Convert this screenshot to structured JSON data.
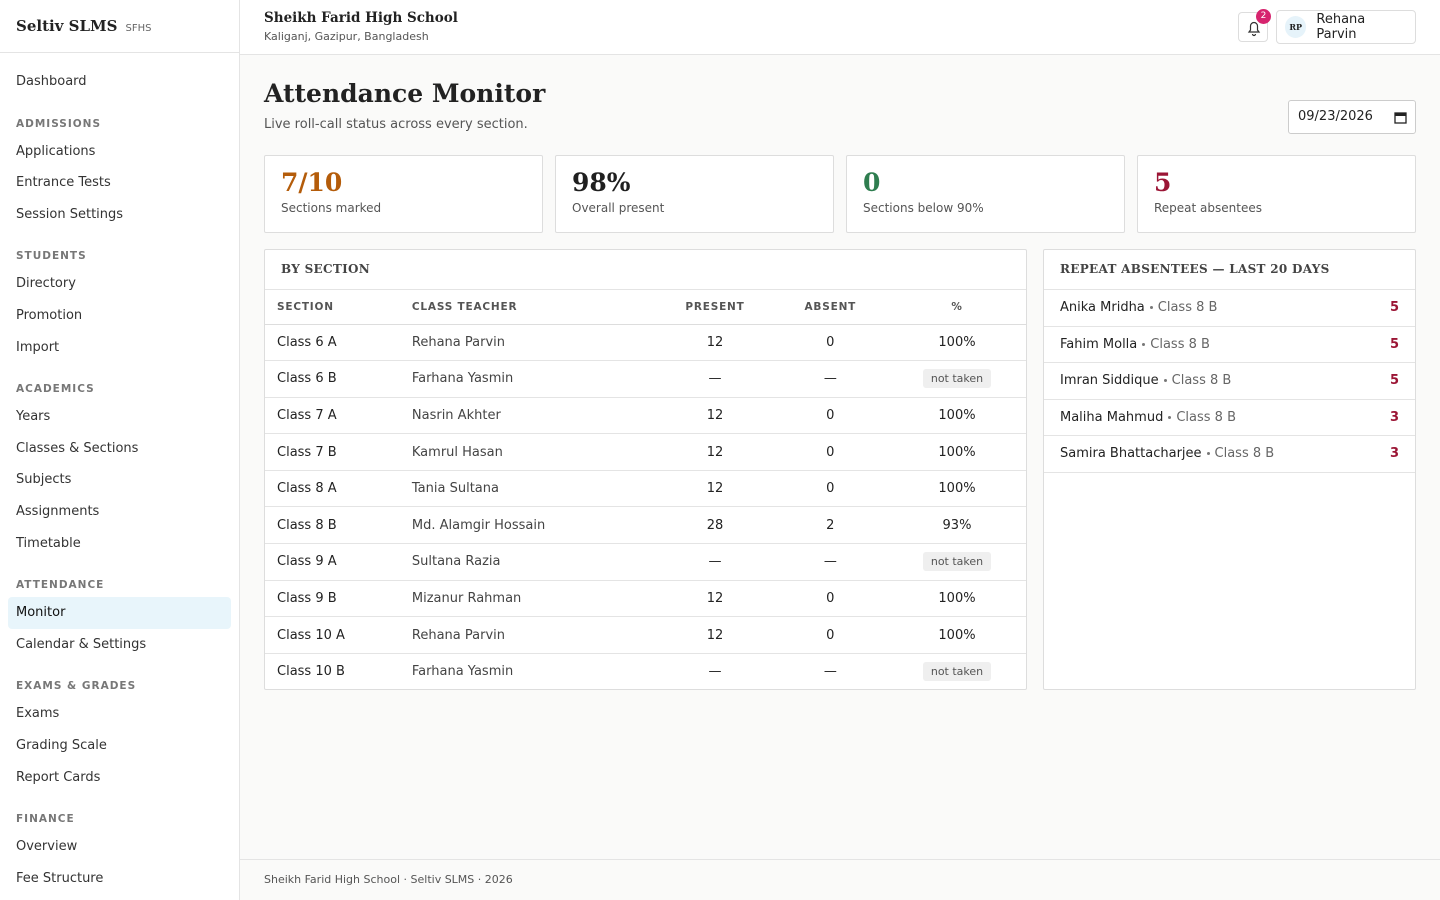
{
  "sidebar": {
    "brand": "Seltiv SLMS",
    "code": "SFHS",
    "nav": [
      {
        "items": [
          {
            "label": "Dashboard"
          }
        ]
      },
      {
        "label": "ADMISSIONS",
        "items": [
          {
            "label": "Applications"
          },
          {
            "label": "Entrance Tests"
          },
          {
            "label": "Session Settings"
          }
        ]
      },
      {
        "label": "STUDENTS",
        "items": [
          {
            "label": "Directory"
          },
          {
            "label": "Promotion"
          },
          {
            "label": "Import"
          }
        ]
      },
      {
        "label": "ACADEMICS",
        "items": [
          {
            "label": "Years"
          },
          {
            "label": "Classes & Sections"
          },
          {
            "label": "Subjects"
          },
          {
            "label": "Assignments"
          },
          {
            "label": "Timetable"
          }
        ]
      },
      {
        "label": "ATTENDANCE",
        "items": [
          {
            "label": "Monitor",
            "active": true
          },
          {
            "label": "Calendar & Settings"
          }
        ]
      },
      {
        "label": "EXAMS & GRADES",
        "items": [
          {
            "label": "Exams"
          },
          {
            "label": "Grading Scale"
          },
          {
            "label": "Report Cards"
          }
        ]
      },
      {
        "label": "FINANCE",
        "items": [
          {
            "label": "Overview"
          },
          {
            "label": "Fee Structure"
          }
        ]
      }
    ]
  },
  "header": {
    "school": "Sheikh Farid High School",
    "location": "Kaliganj, Gazipur, Bangladesh",
    "notifications": 2,
    "initials": "RP",
    "user": "Rehana Parvin"
  },
  "page": {
    "title": "Attendance Monitor",
    "subtitle": "Live roll-call status across every section.",
    "date": "09/23/2026"
  },
  "stats": [
    {
      "value": "7/10",
      "label": "Sections marked",
      "color": "#b45c0a"
    },
    {
      "value": "98%",
      "label": "Overall present",
      "color": "#1f1f1f"
    },
    {
      "value": "0",
      "label": "Sections below 90%",
      "color": "#2e7d4f"
    },
    {
      "value": "5",
      "label": "Repeat absentees",
      "color": "#9b1535"
    }
  ],
  "table": {
    "title": "BY SECTION",
    "columns": [
      "SECTION",
      "CLASS TEACHER",
      "PRESENT",
      "ABSENT",
      "%"
    ],
    "rows": [
      {
        "section": "Class 6 A",
        "teacher": "Rehana Parvin",
        "present": 12,
        "absent": 0,
        "percent": "100%",
        "taken": true
      },
      {
        "section": "Class 6 B",
        "teacher": "Farhana Yasmin",
        "present": "—",
        "absent": "—",
        "percent": "not taken",
        "taken": false
      },
      {
        "section": "Class 7 A",
        "teacher": "Nasrin Akhter",
        "present": 12,
        "absent": 0,
        "percent": "100%",
        "taken": true
      },
      {
        "section": "Class 7 B",
        "teacher": "Kamrul Hasan",
        "present": 12,
        "absent": 0,
        "percent": "100%",
        "taken": true
      },
      {
        "section": "Class 8 A",
        "teacher": "Tania Sultana",
        "present": 12,
        "absent": 0,
        "percent": "100%",
        "taken": true
      },
      {
        "section": "Class 8 B",
        "teacher": "Md. Alamgir Hossain",
        "present": 28,
        "absent": 2,
        "percent": "93%",
        "taken": true
      },
      {
        "section": "Class 9 A",
        "teacher": "Sultana Razia",
        "present": "—",
        "absent": "—",
        "percent": "not taken",
        "taken": false
      },
      {
        "section": "Class 9 B",
        "teacher": "Mizanur Rahman",
        "present": 12,
        "absent": 0,
        "percent": "100%",
        "taken": true
      },
      {
        "section": "Class 10 A",
        "teacher": "Rehana Parvin",
        "present": 12,
        "absent": 0,
        "percent": "100%",
        "taken": true
      },
      {
        "section": "Class 10 B",
        "teacher": "Farhana Yasmin",
        "present": "—",
        "absent": "—",
        "percent": "not taken",
        "taken": false
      }
    ]
  },
  "absentees": {
    "title": "REPEAT ABSENTEES — LAST 20 DAYS",
    "items": [
      {
        "name": "Anika Mridha",
        "detail": "Class 8 B",
        "count": 5
      },
      {
        "name": "Fahim Molla",
        "detail": "Class 8 B",
        "count": 5
      },
      {
        "name": "Imran Siddique",
        "detail": "Class 8 B",
        "count": 5
      },
      {
        "name": "Maliha Mahmud",
        "detail": "Class 8 B",
        "count": 3
      },
      {
        "name": "Samira Bhattacharjee",
        "detail": "Class 8 B",
        "count": 3
      }
    ]
  },
  "footer": "Sheikh Farid High School · Seltiv SLMS · 2026"
}
